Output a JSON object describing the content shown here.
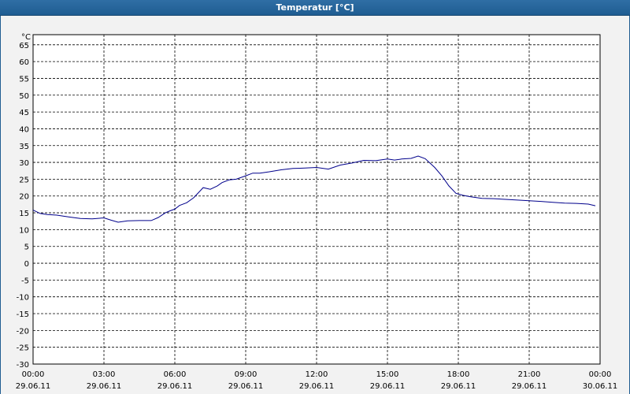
{
  "window": {
    "title": "Temperatur [°C]"
  },
  "chart_data": {
    "type": "line",
    "title": "Temperatur [°C]",
    "ylabel": "°C",
    "ylim": [
      -30,
      68
    ],
    "yticks": [
      65,
      60,
      55,
      50,
      45,
      40,
      35,
      30,
      25,
      20,
      15,
      10,
      5,
      0,
      -5,
      -10,
      -15,
      -20,
      -25,
      -30
    ],
    "xlim_hours": [
      0,
      24
    ],
    "xticks": [
      {
        "hour": 0,
        "time": "00:00",
        "date": "29.06.11"
      },
      {
        "hour": 3,
        "time": "03:00",
        "date": "29.06.11"
      },
      {
        "hour": 6,
        "time": "06:00",
        "date": "29.06.11"
      },
      {
        "hour": 9,
        "time": "09:00",
        "date": "29.06.11"
      },
      {
        "hour": 12,
        "time": "12:00",
        "date": "29.06.11"
      },
      {
        "hour": 15,
        "time": "15:00",
        "date": "29.06.11"
      },
      {
        "hour": 18,
        "time": "18:00",
        "date": "29.06.11"
      },
      {
        "hour": 21,
        "time": "21:00",
        "date": "29.06.11"
      },
      {
        "hour": 24,
        "time": "00:00",
        "date": "30.06.11"
      }
    ],
    "grid": true,
    "line_color": "#00008b",
    "series": [
      {
        "x_hours": [
          0.0,
          0.3,
          0.6,
          1.0,
          1.5,
          2.0,
          2.5,
          3.0,
          3.3,
          3.6,
          4.0,
          4.5,
          5.0,
          5.3,
          5.6,
          5.8,
          6.0,
          6.2,
          6.5,
          6.8,
          7.0,
          7.2,
          7.5,
          7.8,
          8.0,
          8.3,
          8.6,
          9.0,
          9.3,
          9.6,
          10.0,
          10.5,
          11.0,
          11.5,
          12.0,
          12.5,
          13.0,
          13.5,
          14.0,
          14.5,
          15.0,
          15.3,
          15.6,
          16.0,
          16.3,
          16.6,
          17.0,
          17.3,
          17.6,
          17.9,
          18.2,
          18.5,
          19.0,
          19.5,
          20.0,
          20.5,
          21.0,
          21.5,
          22.0,
          22.5,
          23.0,
          23.5,
          23.8
        ],
        "y": [
          15.8,
          14.8,
          14.5,
          14.3,
          13.8,
          13.3,
          13.2,
          13.5,
          12.8,
          12.2,
          12.6,
          12.7,
          12.7,
          13.6,
          15.0,
          15.6,
          16.1,
          17.2,
          18.0,
          19.5,
          21.0,
          22.5,
          22.0,
          23.0,
          24.0,
          24.8,
          25.0,
          26.0,
          26.8,
          26.8,
          27.2,
          27.8,
          28.2,
          28.3,
          28.5,
          28.0,
          29.2,
          29.8,
          30.6,
          30.5,
          31.0,
          30.7,
          31.0,
          31.2,
          31.9,
          31.1,
          28.5,
          26.0,
          23.0,
          20.8,
          20.2,
          19.8,
          19.3,
          19.2,
          19.0,
          18.8,
          18.6,
          18.4,
          18.1,
          17.9,
          17.8,
          17.6,
          17.1
        ]
      }
    ]
  }
}
